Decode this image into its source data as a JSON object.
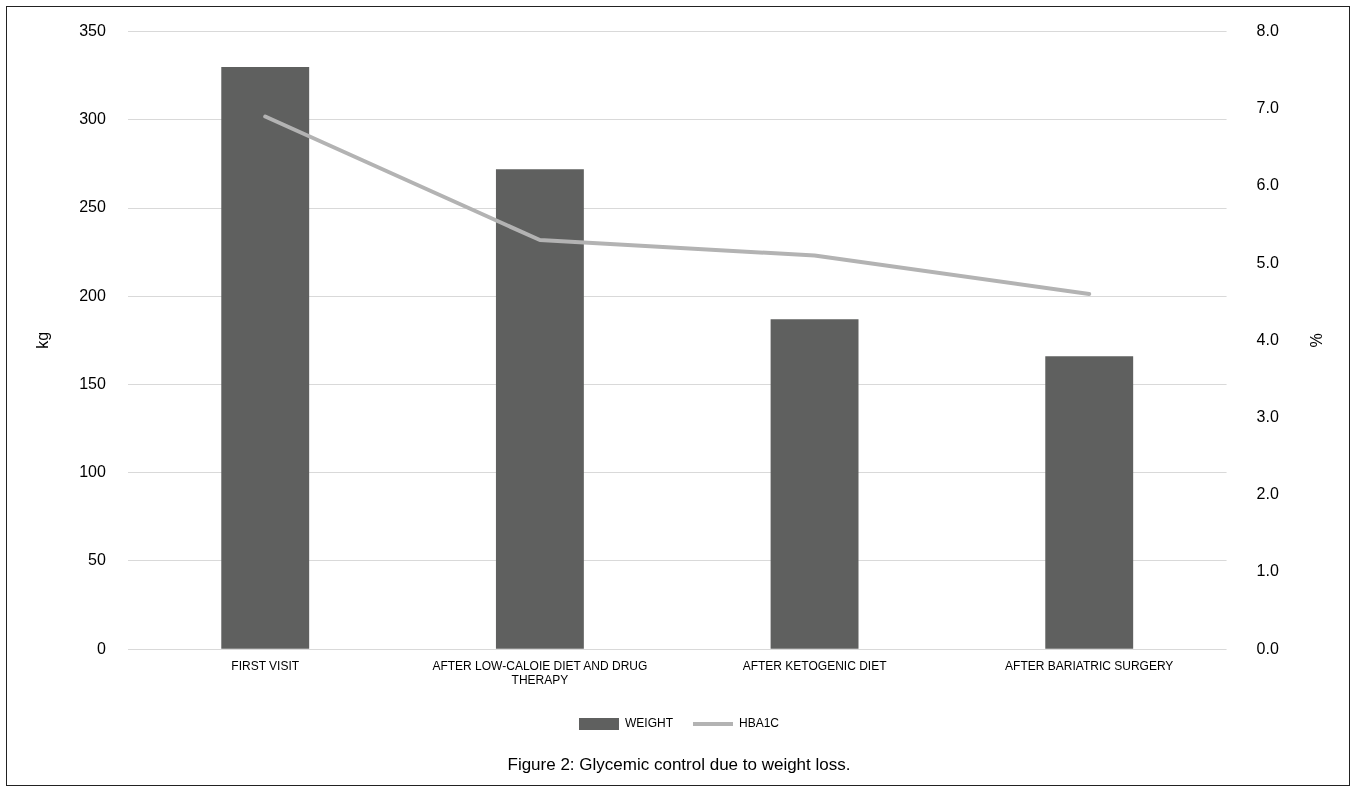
{
  "chart_data": {
    "type": "bar",
    "categories": [
      "FIRST VISIT",
      "AFTER LOW-CALOIE DIET AND DRUG THERAPY",
      "AFTER KETOGENIC DIET",
      "AFTER BARIATRIC SURGERY"
    ],
    "series": [
      {
        "name": "WEIGHT",
        "color": "#5f605f",
        "values": [
          330,
          272,
          187,
          166
        ]
      },
      {
        "name": "HBA1C",
        "type": "line",
        "axis": "y2",
        "color": "#b3b3b3",
        "values": [
          6.9,
          5.3,
          5.1,
          4.6
        ]
      }
    ],
    "ylabel": "kg",
    "y2label": "%",
    "ylim": [
      0,
      350
    ],
    "yticks": [
      0,
      50,
      100,
      150,
      200,
      250,
      300,
      350
    ],
    "y2lim": [
      0,
      8
    ],
    "y2ticks": [
      {
        "value": 0,
        "label": "0.0"
      },
      {
        "value": 1,
        "label": "1.0"
      },
      {
        "value": 2,
        "label": "2.0"
      },
      {
        "value": 3,
        "label": "3.0"
      },
      {
        "value": 4,
        "label": "4.0"
      },
      {
        "value": 5,
        "label": "5.0"
      },
      {
        "value": 6,
        "label": "6.0"
      },
      {
        "value": 7,
        "label": "7.0"
      },
      {
        "value": 8,
        "label": "8.0"
      }
    ],
    "grid": "y",
    "legend": "bottom",
    "marker": "none",
    "annotations": [
      "Figure 2: Glycemic control due to weight loss."
    ]
  }
}
